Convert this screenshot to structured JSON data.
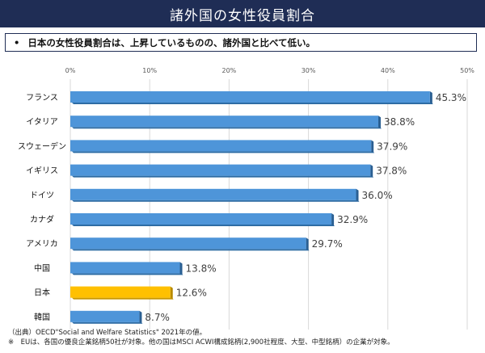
{
  "header": {
    "title": "諸外国の女性役員割合"
  },
  "summary": {
    "bullet": "•",
    "text": "日本の女性役員割合は、上昇しているものの、諸外国と比べて低い。"
  },
  "colors": {
    "bar": "#4e95d9",
    "bar_highlight": "#ffc000",
    "header_bg": "#1f2d55"
  },
  "chart_data": {
    "type": "bar",
    "orientation": "horizontal",
    "categories": [
      "フランス",
      "イタリア",
      "スウェーデン",
      "イギリス",
      "ドイツ",
      "カナダ",
      "アメリカ",
      "中国",
      "日本",
      "韓国"
    ],
    "values": [
      45.3,
      38.8,
      37.9,
      37.8,
      36.0,
      32.9,
      29.7,
      13.8,
      12.6,
      8.7
    ],
    "value_labels": [
      "45.3%",
      "38.8%",
      "37.9%",
      "37.8%",
      "36.0%",
      "32.9%",
      "29.7%",
      "13.8%",
      "12.6%",
      "8.7%"
    ],
    "highlight": "日本",
    "xlim": [
      0,
      50
    ],
    "xticks": [
      "0%",
      "10%",
      "20%",
      "30%",
      "40%",
      "50%"
    ],
    "tick_position": "top",
    "grid": true
  },
  "notes": {
    "source": "（出典）OECD\"Social and Welfare Statistics\" 2021年の値。",
    "remark": "※　EUは、各国の優良企業銘柄50社が対象。他の国はMSCI ACWI構成銘柄(2,900社程度、大型、中型銘柄）の企業が対象。"
  }
}
